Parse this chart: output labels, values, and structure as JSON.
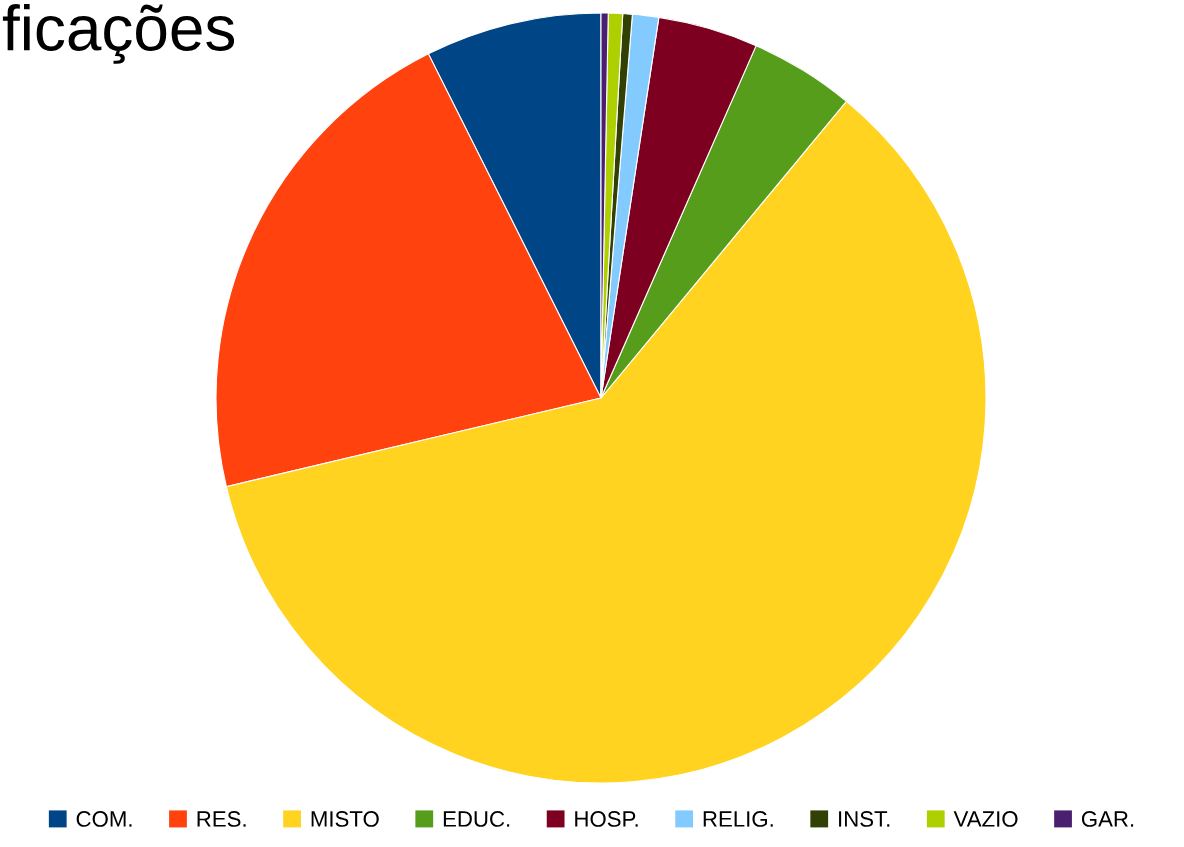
{
  "chart_data": {
    "type": "pie",
    "title": "ficações",
    "categories": [
      "COM.",
      "RES.",
      "MISTO",
      "EDUC.",
      "HOSP.",
      "RELIG.",
      "INST.",
      "VAZIO",
      "GAR."
    ],
    "values": [
      7.4,
      21.3,
      60.3,
      4.4,
      4.2,
      1.1,
      0.4,
      0.6,
      0.3
    ],
    "colors": [
      "#004586",
      "#ff420e",
      "#ffd320",
      "#579d1c",
      "#7e0021",
      "#83caff",
      "#314004",
      "#aecf00",
      "#4b1f6f"
    ],
    "legend": "bottom"
  }
}
